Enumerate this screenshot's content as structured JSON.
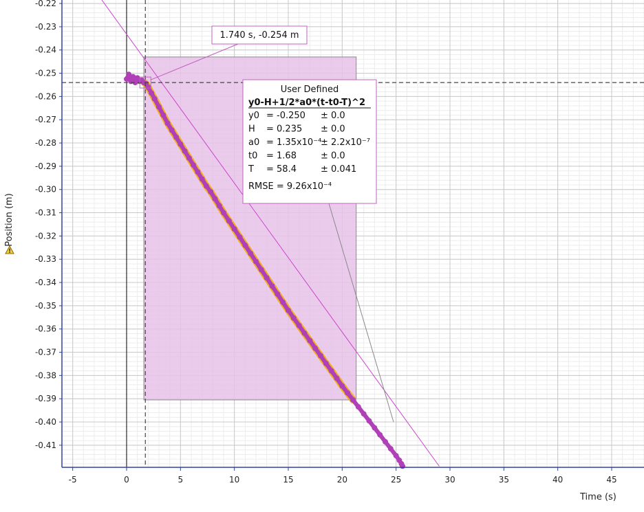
{
  "chart_data": {
    "type": "scatter",
    "xlabel": "Time (s)",
    "ylabel": "Position (m)",
    "xlim": [
      -6,
      48
    ],
    "ylim": [
      -0.4195,
      -0.2185
    ],
    "xticks": [
      -5,
      0,
      5,
      10,
      15,
      20,
      25,
      30,
      35,
      40,
      45
    ],
    "xtick_labels": [
      "-5",
      "0",
      "5",
      "10",
      "15",
      "20",
      "25",
      "30",
      "35",
      "40",
      "45"
    ],
    "yticks": [
      -0.22,
      -0.23,
      -0.24,
      -0.25,
      -0.26,
      -0.27,
      -0.28,
      -0.29,
      -0.3,
      -0.31,
      -0.32,
      -0.33,
      -0.34,
      -0.35,
      -0.36,
      -0.37,
      -0.38,
      -0.39,
      -0.4,
      -0.41
    ],
    "ytick_labels": [
      "-0.22",
      "-0.23",
      "-0.24",
      "-0.25",
      "-0.26",
      "-0.27",
      "-0.28",
      "-0.29",
      "-0.30",
      "-0.31",
      "-0.32",
      "-0.33",
      "-0.34",
      "-0.35",
      "-0.36",
      "-0.37",
      "-0.38",
      "-0.39",
      "-0.40",
      "-0.41"
    ],
    "grid": true,
    "series": [
      {
        "color": "#b040b8",
        "points": [
          [
            0.0,
            -0.2525
          ],
          [
            0.2,
            -0.2505
          ],
          [
            0.4,
            -0.2535
          ],
          [
            0.6,
            -0.2515
          ],
          [
            0.8,
            -0.254
          ],
          [
            1.0,
            -0.252
          ],
          [
            1.2,
            -0.2535
          ],
          [
            1.4,
            -0.253
          ],
          [
            1.6,
            -0.254
          ],
          [
            1.8,
            -0.2545
          ],
          [
            2.0,
            -0.256
          ],
          [
            2.3,
            -0.2585
          ],
          [
            2.6,
            -0.261
          ],
          [
            3.0,
            -0.2645
          ],
          [
            3.4,
            -0.268
          ],
          [
            3.8,
            -0.2715
          ],
          [
            4.2,
            -0.2745
          ],
          [
            4.6,
            -0.2775
          ],
          [
            5.0,
            -0.2805
          ],
          [
            5.4,
            -0.2835
          ],
          [
            5.8,
            -0.2865
          ],
          [
            6.2,
            -0.2895
          ],
          [
            6.6,
            -0.2925
          ],
          [
            7.0,
            -0.2955
          ],
          [
            7.4,
            -0.2985
          ],
          [
            7.8,
            -0.301
          ],
          [
            8.2,
            -0.304
          ],
          [
            8.6,
            -0.307
          ],
          [
            9.0,
            -0.31
          ],
          [
            9.5,
            -0.3135
          ],
          [
            10.0,
            -0.317
          ],
          [
            10.5,
            -0.3205
          ],
          [
            11.0,
            -0.324
          ],
          [
            11.5,
            -0.3275
          ],
          [
            12.0,
            -0.331
          ],
          [
            12.5,
            -0.3345
          ],
          [
            13.0,
            -0.338
          ],
          [
            13.5,
            -0.3415
          ],
          [
            14.0,
            -0.345
          ],
          [
            14.5,
            -0.3485
          ],
          [
            15.0,
            -0.352
          ],
          [
            15.5,
            -0.3553
          ],
          [
            16.0,
            -0.3585
          ],
          [
            16.5,
            -0.3618
          ],
          [
            17.0,
            -0.365
          ],
          [
            17.5,
            -0.3683
          ],
          [
            18.0,
            -0.3715
          ],
          [
            18.5,
            -0.3748
          ],
          [
            19.0,
            -0.378
          ],
          [
            19.5,
            -0.3812
          ],
          [
            20.0,
            -0.3845
          ],
          [
            20.5,
            -0.3875
          ],
          [
            21.0,
            -0.3905
          ],
          [
            21.5,
            -0.3935
          ],
          [
            22.0,
            -0.3965
          ],
          [
            22.5,
            -0.3995
          ],
          [
            23.0,
            -0.4025
          ],
          [
            23.5,
            -0.4055
          ],
          [
            24.0,
            -0.4085
          ],
          [
            24.5,
            -0.4115
          ],
          [
            25.0,
            -0.4145
          ],
          [
            25.3,
            -0.4165
          ],
          [
            25.5,
            -0.418
          ],
          [
            25.6,
            -0.419
          ]
        ]
      }
    ],
    "fit_line": {
      "color": "#cc44cc",
      "points": [
        [
          -3.0,
          -0.214
        ],
        [
          29.0,
          -0.419
        ]
      ]
    },
    "selection": {
      "x_range": [
        1.6,
        21.3
      ],
      "y_range": [
        -0.3905,
        -0.243
      ],
      "fill": "#e8c2e8"
    },
    "cursor": {
      "x": 1.74,
      "y": -0.254,
      "label": "1.740 s, -0.254 m"
    },
    "fit_box": {
      "title": "User Defined",
      "equation": "y0-H+1/2*a0*(t-t0-T)^2",
      "params": [
        {
          "name": "y0",
          "value": "= -0.250",
          "err": "± 0.0"
        },
        {
          "name": "H",
          "value": "= 0.235",
          "err": "± 0.0"
        },
        {
          "name": "a0",
          "value": "= 1.35x10⁻⁴",
          "err": "± 2.2x10⁻⁷"
        },
        {
          "name": "t0",
          "value": "= 1.68",
          "err": "± 0.0"
        },
        {
          "name": "T",
          "value": "= 58.4",
          "err": "± 0.041"
        }
      ],
      "rmse": "RMSE = 9.26x10⁻⁴"
    },
    "colors": {
      "axis": "#3040a0",
      "grid_major": "#c8c8c8",
      "grid_minor": "#ececec",
      "data": "#b040b8",
      "fit_outline": "#f0b020",
      "box_border": "#c060c0"
    }
  }
}
